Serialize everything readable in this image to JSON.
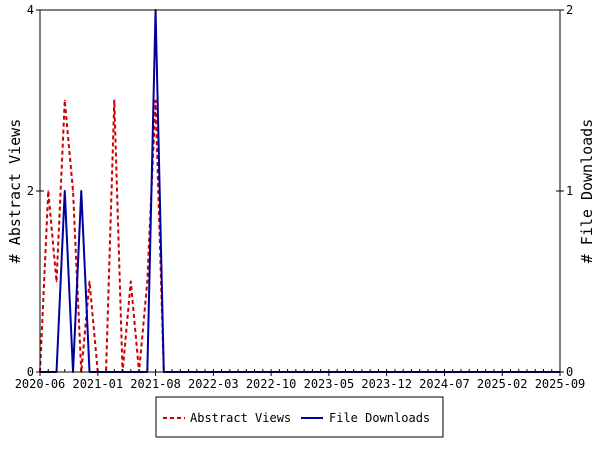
{
  "chart_data": {
    "type": "line",
    "title": "",
    "y_left_label": "# Abstract Views",
    "y_right_label": "# File Downloads",
    "x_tick_labels": [
      "2020-06",
      "2021-01",
      "2021-08",
      "2022-03",
      "2022-10",
      "2023-05",
      "2023-12",
      "2024-07",
      "2025-02",
      "2025-09"
    ],
    "y_left_ticks": [
      "0",
      "2",
      "4"
    ],
    "y_right_ticks": [
      "0",
      "1",
      "2"
    ],
    "y_left_range": [
      0,
      4
    ],
    "y_right_range": [
      0,
      2
    ],
    "x_range": [
      "2020-06",
      "2025-09"
    ],
    "legend": {
      "position": "bottom"
    },
    "series": [
      {
        "name": "Abstract Views",
        "axis": "left",
        "color": "#cc0000",
        "style": "dashed",
        "x": [
          "2020-06",
          "2020-07",
          "2020-08",
          "2020-09",
          "2020-10",
          "2020-11",
          "2020-12",
          "2021-01",
          "2021-02",
          "2021-03",
          "2021-04",
          "2021-05",
          "2021-06",
          "2021-07",
          "2021-08",
          "2021-09",
          "2021-10",
          "2025-09"
        ],
        "values": [
          0,
          2,
          1,
          3,
          2,
          0,
          1,
          0,
          0,
          3,
          0,
          1,
          0,
          1,
          3,
          0,
          0,
          0
        ]
      },
      {
        "name": "File Downloads",
        "axis": "right",
        "color": "#00009c",
        "style": "solid",
        "x": [
          "2020-06",
          "2020-08",
          "2020-09",
          "2020-10",
          "2020-11",
          "2020-12",
          "2021-01",
          "2021-06",
          "2021-07",
          "2021-08",
          "2021-09",
          "2025-09"
        ],
        "values": [
          0,
          0,
          1,
          0,
          1,
          0,
          0,
          0,
          0,
          2,
          0,
          0
        ]
      }
    ]
  }
}
